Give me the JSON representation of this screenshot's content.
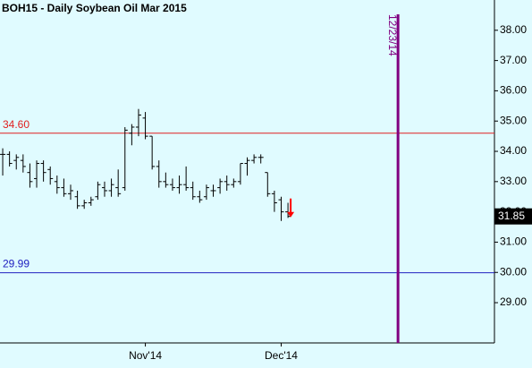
{
  "chart_data": {
    "type": "ohlc",
    "title": "BOH15 - Daily  Soybean Oil Mar 2015",
    "color": "#000000",
    "background": "#e0fbff",
    "open": [
      33.9,
      33.9,
      33.7,
      33.7,
      33.3,
      33.1,
      33.6,
      33.4,
      33.0,
      32.8,
      32.6,
      32.5,
      32.2,
      32.3,
      32.5,
      32.8,
      32.7,
      32.8,
      32.8,
      34.6,
      34.8,
      35.1,
      34.5,
      33.5,
      33.0,
      32.9,
      32.8,
      32.9,
      32.8,
      32.5,
      32.5,
      32.7,
      32.8,
      33.0,
      32.9,
      33.0,
      33.6,
      33.7,
      33.8,
      33.3,
      32.6,
      32.4,
      32.0
    ],
    "high": [
      34.1,
      34.0,
      33.9,
      33.9,
      33.6,
      33.7,
      33.7,
      33.5,
      33.2,
      33.1,
      32.9,
      32.7,
      32.4,
      32.5,
      33.0,
      33.0,
      33.1,
      33.4,
      34.8,
      34.9,
      35.4,
      35.3,
      34.5,
      33.7,
      33.3,
      33.1,
      33.2,
      33.5,
      33.0,
      32.7,
      32.9,
      32.9,
      33.1,
      33.2,
      33.1,
      33.6,
      33.8,
      33.9,
      33.9,
      33.3,
      32.7,
      32.5,
      32.3
    ],
    "low": [
      33.2,
      33.5,
      33.4,
      33.3,
      32.8,
      32.8,
      33.0,
      32.9,
      32.6,
      32.5,
      32.4,
      32.1,
      32.1,
      32.2,
      32.4,
      32.5,
      32.5,
      32.5,
      32.7,
      34.2,
      34.5,
      34.4,
      33.4,
      32.8,
      32.8,
      32.7,
      32.6,
      32.7,
      32.4,
      32.3,
      32.4,
      32.5,
      32.6,
      32.7,
      32.8,
      32.9,
      33.2,
      33.6,
      33.6,
      32.5,
      32.0,
      31.7,
      31.8
    ],
    "close": [
      33.9,
      33.6,
      33.8,
      33.5,
      33.0,
      33.6,
      33.3,
      33.1,
      32.8,
      32.6,
      32.7,
      32.2,
      32.3,
      32.4,
      32.9,
      32.7,
      32.9,
      32.6,
      34.7,
      34.8,
      35.2,
      34.5,
      33.5,
      33.0,
      32.9,
      32.8,
      32.9,
      32.8,
      32.5,
      32.4,
      32.8,
      32.7,
      33.0,
      32.9,
      33.0,
      33.6,
      33.7,
      33.8,
      33.8,
      32.6,
      32.3,
      32.0,
      31.85
    ],
    "xlim": [
      -0.4,
      72.4
    ],
    "xticks": [
      {
        "value": 21,
        "label": "Nov'14"
      },
      {
        "value": 41,
        "label": "Dec'14"
      }
    ],
    "ylim": [
      27.67,
      39.0
    ],
    "yticks": [
      {
        "value": 29,
        "label": "29.00"
      },
      {
        "value": 30,
        "label": "30.00"
      },
      {
        "value": 31,
        "label": "31.00"
      },
      {
        "value": 32,
        "label": "32.00"
      },
      {
        "value": 33,
        "label": "33.00"
      },
      {
        "value": 34,
        "label": "34.00"
      },
      {
        "value": 35,
        "label": "35.00"
      },
      {
        "value": 36,
        "label": "36.00"
      },
      {
        "value": 37,
        "label": "37.00"
      },
      {
        "value": 38,
        "label": "38.00"
      }
    ],
    "hlines": [
      {
        "value": 34.6,
        "label": "34.60",
        "color": "#e02020"
      },
      {
        "value": 29.99,
        "label": "29.99",
        "color": "#2020c0"
      }
    ],
    "vline": {
      "x": 58.2,
      "label": "12/23/14",
      "color": "#800080"
    },
    "last_price": {
      "value": 31.85,
      "label": "31.85"
    },
    "arrow_color": "#ff0000"
  }
}
